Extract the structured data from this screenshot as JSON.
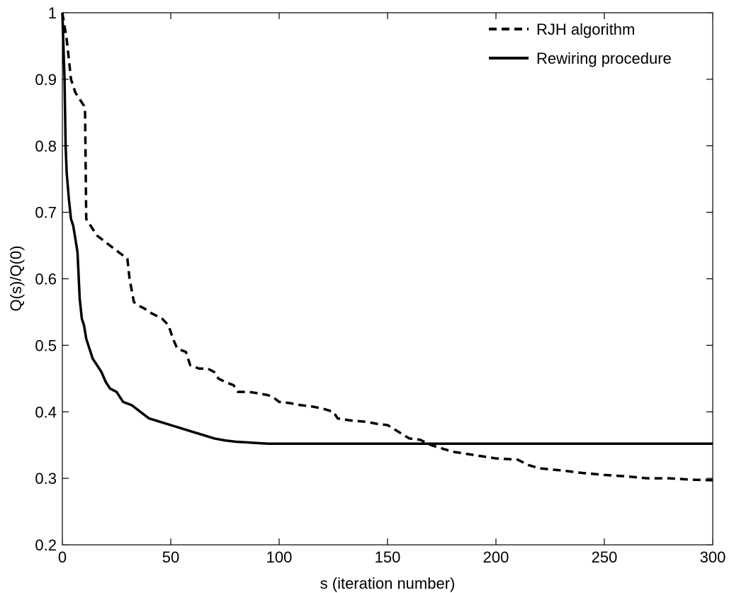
{
  "chart_data": {
    "type": "line",
    "title": "",
    "xlabel": "s (iteration number)",
    "ylabel": "Q(s)/Q(0)",
    "xlim": [
      0,
      300
    ],
    "ylim": [
      0.2,
      1
    ],
    "x_ticks": [
      0,
      50,
      100,
      150,
      200,
      250,
      300
    ],
    "y_ticks": [
      0.2,
      0.3,
      0.4,
      0.5,
      0.6,
      0.7,
      0.8,
      0.9,
      1
    ],
    "grid": false,
    "legend_position": "top-right",
    "series": [
      {
        "name": "RJH algorithm",
        "style": "dashed",
        "color": "#000000",
        "points": [
          [
            0,
            1.0
          ],
          [
            1,
            0.98
          ],
          [
            2,
            0.96
          ],
          [
            3,
            0.93
          ],
          [
            4,
            0.9
          ],
          [
            5,
            0.89
          ],
          [
            6,
            0.88
          ],
          [
            7,
            0.875
          ],
          [
            8,
            0.87
          ],
          [
            9,
            0.865
          ],
          [
            10,
            0.86
          ],
          [
            10.5,
            0.85
          ],
          [
            11,
            0.69
          ],
          [
            12,
            0.685
          ],
          [
            14,
            0.675
          ],
          [
            16,
            0.665
          ],
          [
            18,
            0.66
          ],
          [
            20,
            0.655
          ],
          [
            22,
            0.65
          ],
          [
            24,
            0.645
          ],
          [
            26,
            0.64
          ],
          [
            28,
            0.635
          ],
          [
            30,
            0.63
          ],
          [
            31,
            0.6
          ],
          [
            33,
            0.565
          ],
          [
            35,
            0.56
          ],
          [
            38,
            0.555
          ],
          [
            40,
            0.55
          ],
          [
            43,
            0.545
          ],
          [
            46,
            0.54
          ],
          [
            49,
            0.53
          ],
          [
            51,
            0.51
          ],
          [
            53,
            0.495
          ],
          [
            57,
            0.49
          ],
          [
            59,
            0.47
          ],
          [
            63,
            0.465
          ],
          [
            67,
            0.465
          ],
          [
            70,
            0.46
          ],
          [
            72,
            0.45
          ],
          [
            75,
            0.445
          ],
          [
            79,
            0.44
          ],
          [
            81,
            0.43
          ],
          [
            86,
            0.43
          ],
          [
            90,
            0.428
          ],
          [
            95,
            0.425
          ],
          [
            98,
            0.42
          ],
          [
            100,
            0.415
          ],
          [
            105,
            0.413
          ],
          [
            110,
            0.41
          ],
          [
            115,
            0.408
          ],
          [
            120,
            0.405
          ],
          [
            125,
            0.4
          ],
          [
            127,
            0.39
          ],
          [
            133,
            0.387
          ],
          [
            140,
            0.385
          ],
          [
            145,
            0.382
          ],
          [
            150,
            0.38
          ],
          [
            155,
            0.37
          ],
          [
            160,
            0.36
          ],
          [
            165,
            0.358
          ],
          [
            170,
            0.35
          ],
          [
            180,
            0.34
          ],
          [
            190,
            0.335
          ],
          [
            200,
            0.33
          ],
          [
            210,
            0.328
          ],
          [
            215,
            0.32
          ],
          [
            220,
            0.315
          ],
          [
            230,
            0.312
          ],
          [
            240,
            0.308
          ],
          [
            250,
            0.305
          ],
          [
            260,
            0.303
          ],
          [
            270,
            0.3
          ],
          [
            280,
            0.3
          ],
          [
            290,
            0.298
          ],
          [
            300,
            0.297
          ]
        ]
      },
      {
        "name": "Rewiring procedure",
        "style": "solid",
        "color": "#000000",
        "points": [
          [
            0,
            1.0
          ],
          [
            1,
            0.9
          ],
          [
            1.5,
            0.8
          ],
          [
            2,
            0.76
          ],
          [
            3,
            0.72
          ],
          [
            4,
            0.69
          ],
          [
            5,
            0.68
          ],
          [
            6,
            0.66
          ],
          [
            7,
            0.64
          ],
          [
            8,
            0.57
          ],
          [
            9,
            0.54
          ],
          [
            10,
            0.53
          ],
          [
            11,
            0.51
          ],
          [
            12,
            0.5
          ],
          [
            13,
            0.49
          ],
          [
            14,
            0.48
          ],
          [
            16,
            0.47
          ],
          [
            18,
            0.46
          ],
          [
            20,
            0.445
          ],
          [
            22,
            0.435
          ],
          [
            25,
            0.43
          ],
          [
            28,
            0.415
          ],
          [
            32,
            0.41
          ],
          [
            36,
            0.4
          ],
          [
            40,
            0.39
          ],
          [
            45,
            0.385
          ],
          [
            50,
            0.38
          ],
          [
            55,
            0.375
          ],
          [
            60,
            0.37
          ],
          [
            65,
            0.365
          ],
          [
            70,
            0.36
          ],
          [
            75,
            0.357
          ],
          [
            80,
            0.355
          ],
          [
            85,
            0.354
          ],
          [
            90,
            0.353
          ],
          [
            95,
            0.352
          ],
          [
            100,
            0.352
          ],
          [
            150,
            0.352
          ],
          [
            200,
            0.352
          ],
          [
            250,
            0.352
          ],
          [
            300,
            0.352
          ]
        ]
      }
    ]
  }
}
